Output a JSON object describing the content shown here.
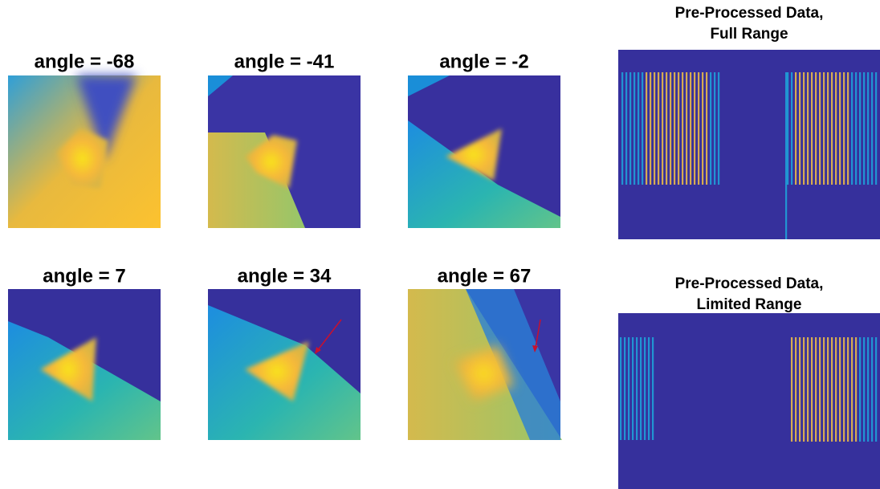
{
  "panels": [
    {
      "title": "angle = -68"
    },
    {
      "title": "angle = -41"
    },
    {
      "title": "angle = -2"
    },
    {
      "title": "angle = 7"
    },
    {
      "title": "angle = 34"
    },
    {
      "title": "angle = 67"
    }
  ],
  "right_panels": [
    {
      "title_lines": [
        "Pre-Processed Data,",
        "Full Range"
      ]
    },
    {
      "title_lines": [
        "Pre-Processed Data,",
        "Limited Range"
      ]
    }
  ]
}
